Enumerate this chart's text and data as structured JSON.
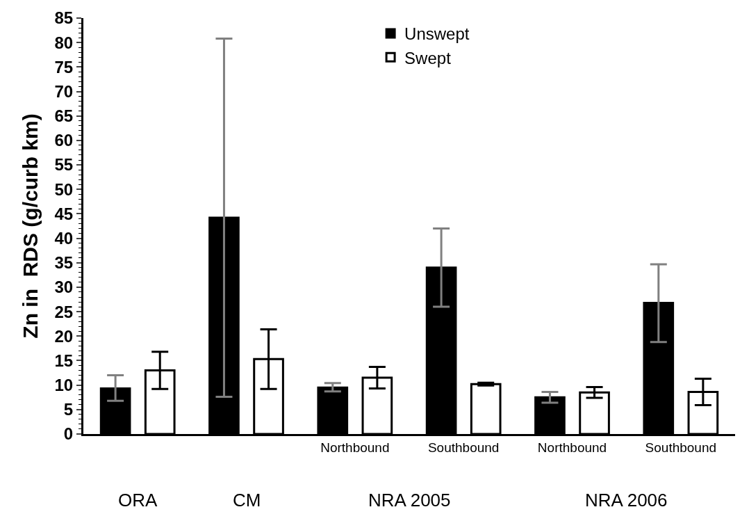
{
  "chart_data": {
    "type": "bar",
    "ylabel": "Zn in  RDS (g/curb km)",
    "categories": [
      null,
      null,
      "Northbound",
      "Southbound",
      "Northbound",
      "Southbound"
    ],
    "series": [
      {
        "name": "Unswept",
        "color": "#000000",
        "values": [
          9.3,
          44.2,
          9.5,
          34,
          7.5,
          26.8
        ],
        "errors": [
          [
            6.8,
            12
          ],
          [
            7.6,
            80.8
          ],
          [
            8.7,
            10.4
          ],
          [
            26,
            42
          ],
          [
            6.4,
            8.6
          ],
          [
            18.8,
            34.7
          ]
        ]
      },
      {
        "name": "Swept",
        "color": "#ffffff",
        "values": [
          13,
          15.3,
          11.5,
          10.2,
          8.5,
          8.6
        ],
        "errors": [
          [
            9.2,
            16.8
          ],
          [
            9.2,
            21.4
          ],
          [
            9.3,
            13.7
          ],
          [
            9.9,
            10.5
          ],
          [
            7.4,
            9.6
          ],
          [
            5.9,
            11.3
          ]
        ]
      }
    ],
    "annotations": [
      "ORA",
      "CM",
      "NRA 2005",
      "NRA 2006"
    ],
    "ylim": [
      0,
      85
    ],
    "yticks": [
      0,
      5,
      10,
      15,
      20,
      25,
      30,
      35,
      40,
      45,
      50,
      55,
      60,
      65,
      70,
      75,
      80,
      85
    ],
    "legend": "top"
  }
}
